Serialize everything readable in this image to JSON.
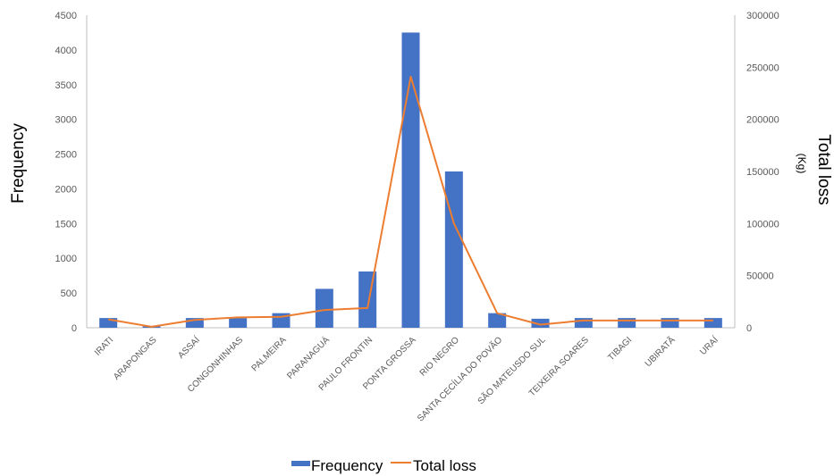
{
  "chart_data": {
    "type": "bar",
    "categories": [
      "IRATI",
      "ARAPONGAS",
      "ASSAÍ",
      "CONGONHINHAS",
      "PALMEIRA",
      "PARANAGUÁ",
      "PAULO FRONTIN",
      "PONTA GROSSA",
      "RIO NEGRO",
      "SANTA CECÍLIA DO POVÃO",
      "SÃO MATEUSDO SUL",
      "TEIXEIRA SOARES",
      "TIBAGI",
      "UBIRATÃ",
      "URAÍ"
    ],
    "series": [
      {
        "name": "Frequency",
        "type": "bar",
        "axis": "left",
        "color": "#4472C4",
        "values": [
          140,
          20,
          140,
          140,
          210,
          560,
          810,
          4250,
          2250,
          210,
          130,
          140,
          140,
          140,
          140
        ]
      },
      {
        "name": "Total loss",
        "type": "line",
        "axis": "right",
        "color": "#ED7D31",
        "values": [
          8000,
          1000,
          7500,
          10000,
          10500,
          17000,
          19000,
          241000,
          100000,
          14000,
          3000,
          7000,
          7000,
          7000,
          7000
        ]
      }
    ],
    "ylabel": "Frequency",
    "y2label": "Total loss",
    "y2label_sub": "(Kg)",
    "ylim": [
      0,
      4500
    ],
    "yticks": [
      "0",
      "500",
      "1000",
      "1500",
      "2000",
      "2500",
      "3000",
      "3500",
      "4000",
      "4500"
    ],
    "y2lim": [
      0,
      300000
    ],
    "y2ticks": [
      "0",
      "50000",
      "100000",
      "150000",
      "200000",
      "250000",
      "300000"
    ],
    "grid": false,
    "legend": "bottom"
  }
}
